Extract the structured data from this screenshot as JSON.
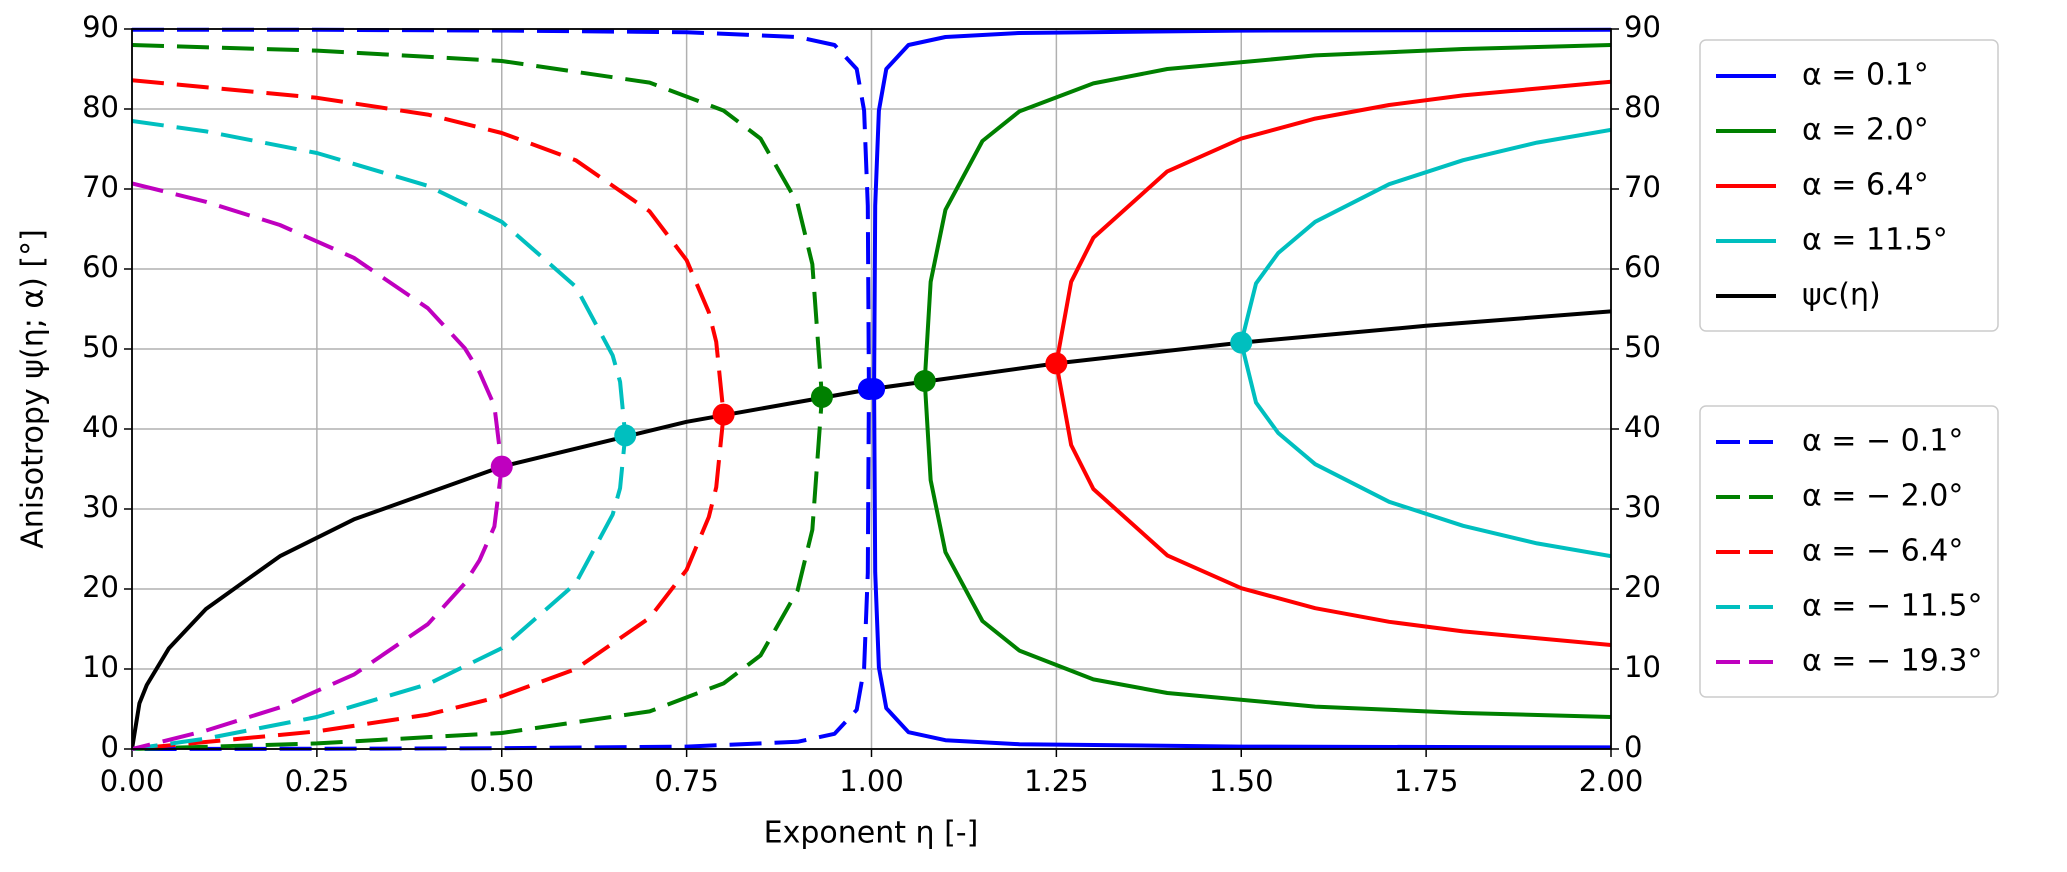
{
  "chart_data": {
    "type": "line",
    "x_label": "Exponent  η   [-]",
    "y_label": "Anisotropy  ψ(η; α)   [°]",
    "xlim": [
      0,
      2
    ],
    "ylim": [
      0,
      90
    ],
    "xticks": [
      {
        "value": 0,
        "label": "0.00"
      },
      {
        "value": 0.25,
        "label": "0.25"
      },
      {
        "value": 0.5,
        "label": "0.50"
      },
      {
        "value": 0.75,
        "label": "0.75"
      },
      {
        "value": 1,
        "label": "1.00"
      },
      {
        "value": 1.25,
        "label": "1.25"
      },
      {
        "value": 1.5,
        "label": "1.50"
      },
      {
        "value": 1.75,
        "label": "1.75"
      },
      {
        "value": 2,
        "label": "2.00"
      }
    ],
    "yticks": [
      0,
      10,
      20,
      30,
      40,
      50,
      60,
      70,
      80,
      90
    ],
    "grid": true,
    "series": [
      {
        "name": "α = 0.1°",
        "color": "#0000ff",
        "dashed": false,
        "marker": [
          1.0035,
          45.0
        ],
        "x": [
          2,
          1.5,
          1.2,
          1.1,
          1.05,
          1.02,
          1.01,
          1.005,
          1.0035,
          1.005,
          1.01,
          1.02,
          1.05,
          1.1,
          1.2,
          1.5,
          2
        ],
        "values": [
          89.9,
          89.8,
          89.5,
          89.0,
          88.0,
          85.0,
          79.8,
          67.9,
          45.0,
          22.1,
          10.2,
          5.1,
          2.1,
          1.1,
          0.6,
          0.3,
          0.2
        ]
      },
      {
        "name": "α = 2.0°",
        "color": "#008000",
        "dashed": false,
        "marker": [
          1.072,
          46.0
        ],
        "x": [
          2,
          1.8,
          1.6,
          1.4,
          1.3,
          1.2,
          1.15,
          1.1,
          1.08,
          1.072,
          1.08,
          1.1,
          1.15,
          1.2,
          1.3,
          1.4,
          1.6,
          1.8,
          2
        ],
        "values": [
          88.0,
          87.5,
          86.7,
          85.0,
          83.2,
          79.7,
          76.0,
          67.4,
          58.4,
          46.0,
          33.6,
          24.6,
          16.0,
          12.3,
          8.7,
          7.0,
          5.3,
          4.5,
          4.0
        ]
      },
      {
        "name": "α = 6.4°",
        "color": "#ff0000",
        "dashed": false,
        "marker": [
          1.25,
          48.2
        ],
        "x": [
          2,
          1.8,
          1.7,
          1.6,
          1.5,
          1.4,
          1.3,
          1.27,
          1.25,
          1.27,
          1.3,
          1.4,
          1.5,
          1.6,
          1.7,
          1.8,
          2
        ],
        "values": [
          83.4,
          81.7,
          80.5,
          78.8,
          76.3,
          72.2,
          63.9,
          58.4,
          48.2,
          38.0,
          32.5,
          24.2,
          20.1,
          17.6,
          15.9,
          14.7,
          13.0
        ]
      },
      {
        "name": "α = 11.5°",
        "color": "#00bfbf",
        "dashed": false,
        "marker": [
          1.5,
          50.8
        ],
        "x": [
          2,
          1.9,
          1.8,
          1.7,
          1.6,
          1.55,
          1.52,
          1.5,
          1.52,
          1.55,
          1.6,
          1.7,
          1.8,
          1.9,
          2
        ],
        "values": [
          77.4,
          75.8,
          73.6,
          70.6,
          65.9,
          62.0,
          58.2,
          50.8,
          43.3,
          39.5,
          35.6,
          30.9,
          27.9,
          25.7,
          24.1
        ]
      },
      {
        "name": "ψc(η)",
        "color": "#000000",
        "dashed": false,
        "x": [
          0,
          0.01,
          0.02,
          0.05,
          0.1,
          0.2,
          0.3,
          0.5,
          0.75,
          1,
          1.25,
          1.5,
          1.75,
          2
        ],
        "values": [
          0,
          5.7,
          8.0,
          12.6,
          17.5,
          24.1,
          28.7,
          35.3,
          40.9,
          45.0,
          48.2,
          50.8,
          52.9,
          54.7
        ]
      },
      {
        "name": "α =  − 0.1°",
        "color": "#0000ff",
        "dashed": true,
        "marker": [
          0.9965,
          45.0
        ],
        "x": [
          0,
          0.25,
          0.5,
          0.75,
          0.9,
          0.95,
          0.98,
          0.99,
          0.995,
          0.9965,
          0.995,
          0.99,
          0.98,
          0.95,
          0.9,
          0.75,
          0.5,
          0.25,
          0
        ],
        "values": [
          89.9,
          89.9,
          89.8,
          89.6,
          89.0,
          88.0,
          85.0,
          79.8,
          67.9,
          45.0,
          22.0,
          10.1,
          4.9,
          1.9,
          0.9,
          0.3,
          0.1,
          0.03,
          0
        ]
      },
      {
        "name": "α =  − 2.0°",
        "color": "#008000",
        "dashed": true,
        "marker": [
          0.933,
          44.0
        ],
        "x": [
          0,
          0.25,
          0.5,
          0.7,
          0.8,
          0.85,
          0.9,
          0.92,
          0.933,
          0.92,
          0.9,
          0.85,
          0.8,
          0.7,
          0.5,
          0.25,
          0
        ],
        "values": [
          88.0,
          87.3,
          86.0,
          83.3,
          79.8,
          76.3,
          68.2,
          60.6,
          44.0,
          27.4,
          19.8,
          11.7,
          8.2,
          4.7,
          2.0,
          0.7,
          0
        ]
      },
      {
        "name": "α =  − 6.4°",
        "color": "#ff0000",
        "dashed": true,
        "marker": [
          0.8,
          41.8
        ],
        "x": [
          0,
          0.25,
          0.4,
          0.5,
          0.6,
          0.7,
          0.75,
          0.78,
          0.79,
          0.8,
          0.79,
          0.78,
          0.75,
          0.7,
          0.6,
          0.5,
          0.4,
          0.25,
          0
        ],
        "values": [
          83.6,
          81.4,
          79.3,
          77.0,
          73.6,
          67.2,
          61.1,
          54.6,
          50.9,
          41.8,
          32.7,
          29.0,
          22.4,
          16.4,
          10.0,
          6.6,
          4.3,
          2.2,
          0
        ]
      },
      {
        "name": "α =  − 11.5°",
        "color": "#00bfbf",
        "dashed": true,
        "marker": [
          0.667,
          39.2
        ],
        "x": [
          0,
          0.1,
          0.25,
          0.4,
          0.5,
          0.6,
          0.65,
          0.66,
          0.667,
          0.66,
          0.65,
          0.6,
          0.5,
          0.4,
          0.25,
          0.1,
          0
        ],
        "values": [
          78.5,
          77.2,
          74.5,
          70.4,
          65.9,
          57.8,
          49.2,
          45.9,
          39.2,
          32.6,
          29.3,
          20.7,
          12.6,
          8.1,
          4.0,
          1.3,
          0
        ]
      },
      {
        "name": "α =  − 19.3°",
        "color": "#bf00bf",
        "dashed": true,
        "marker": [
          0.5,
          35.3
        ],
        "x": [
          0,
          0.1,
          0.2,
          0.3,
          0.4,
          0.45,
          0.47,
          0.49,
          0.5,
          0.49,
          0.47,
          0.45,
          0.4,
          0.3,
          0.2,
          0.1,
          0
        ],
        "values": [
          70.7,
          68.4,
          65.5,
          61.4,
          55.1,
          50.1,
          47.1,
          42.9,
          35.3,
          27.8,
          23.6,
          20.7,
          15.6,
          9.3,
          5.2,
          2.3,
          0
        ]
      }
    ]
  }
}
